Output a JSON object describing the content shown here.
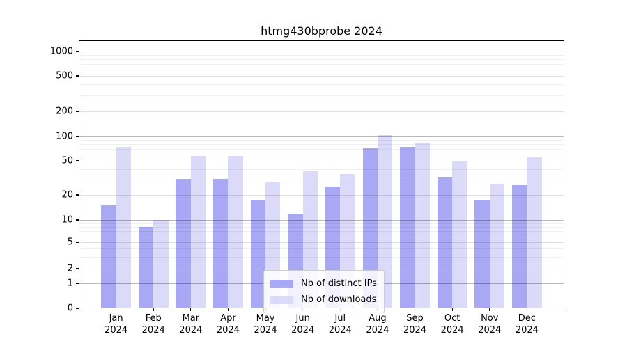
{
  "figure": {
    "title": "htmg430bprobe 2024"
  },
  "chart_data": {
    "type": "bar",
    "title": "htmg430bprobe 2024",
    "categories": [
      "Jan 2024",
      "Feb 2024",
      "Mar 2024",
      "Apr 2024",
      "May 2024",
      "Jun 2024",
      "Jul 2024",
      "Aug 2024",
      "Sep 2024",
      "Oct 2024",
      "Nov 2024",
      "Dec 2024"
    ],
    "series": [
      {
        "name": "Nb of distinct IPs",
        "color": "#a8a8f5",
        "values": [
          15,
          8,
          31,
          31,
          17,
          12,
          25,
          72,
          75,
          32,
          17,
          26
        ]
      },
      {
        "name": "Nb of downloads",
        "color": "#dbdbf9",
        "values": [
          75,
          10,
          57,
          58,
          28,
          38,
          35,
          104,
          84,
          49,
          27,
          55
        ]
      }
    ],
    "xlabel": "",
    "ylabel": "",
    "yscale": "symlog",
    "yticks": [
      0,
      1,
      2,
      5,
      10,
      20,
      50,
      100,
      200,
      500,
      1000
    ],
    "yticks_minor": [
      3,
      4,
      6,
      7,
      8,
      9,
      30,
      40,
      60,
      70,
      80,
      90,
      300,
      400,
      600,
      700,
      800,
      900
    ],
    "ylim": [
      0,
      1200
    ],
    "grid": true,
    "legend_position": "lower center"
  }
}
